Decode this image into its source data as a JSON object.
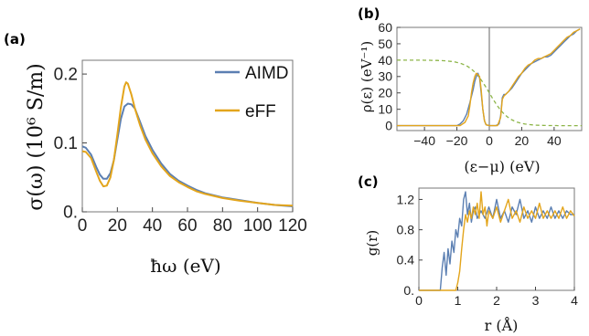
{
  "colors": {
    "aimd": "#5b7fb2",
    "eff": "#e3a51c",
    "fermi": "#8db548",
    "axis": "#444444"
  },
  "chart_data": [
    {
      "id": "a",
      "type": "line",
      "panel_label": "(a)",
      "xlabel": "ħω (eV)",
      "ylabel": "σ(ω) (10⁶ S/m)",
      "xlim": [
        0,
        120
      ],
      "ylim": [
        0,
        0.22
      ],
      "xticks": [
        0,
        20,
        40,
        60,
        80,
        100,
        120
      ],
      "xtick_labels": [
        "0",
        "20",
        "40",
        "60",
        "80",
        "100",
        "120"
      ],
      "yticks": [
        0,
        0.1,
        0.2
      ],
      "ytick_labels": [
        "0.",
        "0.1",
        "0.2"
      ],
      "legend_position": "top-right",
      "series": [
        {
          "name": "AIMD",
          "color": "#5b7fb2",
          "points": [
            [
              0,
              0.095
            ],
            [
              2,
              0.093
            ],
            [
              5,
              0.083
            ],
            [
              8,
              0.065
            ],
            [
              10,
              0.054
            ],
            [
              12,
              0.048
            ],
            [
              14,
              0.048
            ],
            [
              16,
              0.056
            ],
            [
              18,
              0.075
            ],
            [
              20,
              0.105
            ],
            [
              22,
              0.135
            ],
            [
              24,
              0.153
            ],
            [
              26,
              0.157
            ],
            [
              28,
              0.156
            ],
            [
              30,
              0.15
            ],
            [
              33,
              0.13
            ],
            [
              36,
              0.11
            ],
            [
              40,
              0.09
            ],
            [
              45,
              0.07
            ],
            [
              50,
              0.055
            ],
            [
              55,
              0.045
            ],
            [
              60,
              0.038
            ],
            [
              65,
              0.032
            ],
            [
              70,
              0.027
            ],
            [
              80,
              0.021
            ],
            [
              90,
              0.017
            ],
            [
              100,
              0.013
            ],
            [
              110,
              0.01
            ],
            [
              120,
              0.008
            ]
          ]
        },
        {
          "name": "eFF",
          "color": "#e3a51c",
          "points": [
            [
              0,
              0.088
            ],
            [
              2,
              0.087
            ],
            [
              5,
              0.078
            ],
            [
              8,
              0.058
            ],
            [
              10,
              0.045
            ],
            [
              12,
              0.037
            ],
            [
              14,
              0.038
            ],
            [
              16,
              0.05
            ],
            [
              18,
              0.075
            ],
            [
              20,
              0.112
            ],
            [
              22,
              0.152
            ],
            [
              24,
              0.182
            ],
            [
              25,
              0.188
            ],
            [
              26,
              0.186
            ],
            [
              28,
              0.17
            ],
            [
              30,
              0.15
            ],
            [
              33,
              0.125
            ],
            [
              36,
              0.105
            ],
            [
              40,
              0.085
            ],
            [
              45,
              0.066
            ],
            [
              50,
              0.052
            ],
            [
              55,
              0.043
            ],
            [
              60,
              0.036
            ],
            [
              65,
              0.03
            ],
            [
              70,
              0.026
            ],
            [
              80,
              0.02
            ],
            [
              90,
              0.016
            ],
            [
              100,
              0.013
            ],
            [
              110,
              0.01
            ],
            [
              120,
              0.009
            ]
          ]
        }
      ]
    },
    {
      "id": "b",
      "type": "line",
      "panel_label": "(b)",
      "xlabel": "(ε−μ) (eV)",
      "ylabel": "ρ(ε) (eV⁻¹)",
      "xlim": [
        -57,
        57
      ],
      "ylim": [
        -3,
        60
      ],
      "xticks": [
        -40,
        -20,
        0,
        20,
        40
      ],
      "xtick_labels": [
        "−40",
        "−20",
        "0",
        "20",
        "40"
      ],
      "yticks": [
        0,
        10,
        20,
        30,
        40,
        50,
        60
      ],
      "ytick_labels": [
        "0",
        "10",
        "20",
        "30",
        "40",
        "50",
        "60"
      ],
      "vline_x": 0,
      "fermi_curve": {
        "amplitude": 40,
        "center": 0,
        "width": 6
      },
      "series": [
        {
          "name": "AIMD",
          "color": "#5b7fb2",
          "points": [
            [
              -57,
              0
            ],
            [
              -20,
              0
            ],
            [
              -18,
              1
            ],
            [
              -16,
              3
            ],
            [
              -14,
              7
            ],
            [
              -12,
              14
            ],
            [
              -10,
              22
            ],
            [
              -9,
              27
            ],
            [
              -8,
              30
            ],
            [
              -7,
              32
            ],
            [
              -6,
              29
            ],
            [
              -5,
              20
            ],
            [
              -4,
              10
            ],
            [
              -3,
              3
            ],
            [
              -2,
              0.5
            ],
            [
              0,
              0
            ],
            [
              4,
              0
            ],
            [
              6,
              1
            ],
            [
              7,
              6
            ],
            [
              8,
              17
            ],
            [
              9,
              19
            ],
            [
              10,
              19
            ],
            [
              12,
              21
            ],
            [
              14,
              23
            ],
            [
              16,
              26
            ],
            [
              18,
              29
            ],
            [
              20,
              32
            ],
            [
              22,
              34
            ],
            [
              24,
              36
            ],
            [
              26,
              38
            ],
            [
              28,
              39
            ],
            [
              30,
              40
            ],
            [
              32,
              41
            ],
            [
              34,
              42
            ],
            [
              36,
              42
            ],
            [
              38,
              43
            ],
            [
              40,
              45
            ],
            [
              42,
              47
            ],
            [
              44,
              49
            ],
            [
              46,
              51
            ],
            [
              48,
              53
            ],
            [
              50,
              55
            ],
            [
              52,
              56
            ],
            [
              54,
              58
            ],
            [
              56,
              59
            ]
          ]
        },
        {
          "name": "eFF",
          "color": "#e3a51c",
          "points": [
            [
              -57,
              0
            ],
            [
              -18,
              0
            ],
            [
              -15,
              2
            ],
            [
              -13,
              6
            ],
            [
              -12,
              12
            ],
            [
              -11,
              20
            ],
            [
              -10,
              26
            ],
            [
              -9,
              30
            ],
            [
              -8,
              32
            ],
            [
              -7,
              31
            ],
            [
              -6,
              30
            ],
            [
              -5,
              22
            ],
            [
              -4,
              10
            ],
            [
              -3,
              3
            ],
            [
              -2,
              0.5
            ],
            [
              0,
              0
            ],
            [
              5,
              0
            ],
            [
              7,
              5
            ],
            [
              8,
              16
            ],
            [
              9,
              18
            ],
            [
              10,
              19
            ],
            [
              12,
              21
            ],
            [
              14,
              24
            ],
            [
              16,
              27
            ],
            [
              18,
              30
            ],
            [
              20,
              32
            ],
            [
              22,
              35
            ],
            [
              24,
              37
            ],
            [
              26,
              38
            ],
            [
              28,
              40
            ],
            [
              30,
              41
            ],
            [
              32,
              41
            ],
            [
              34,
              42
            ],
            [
              36,
              43
            ],
            [
              38,
              44
            ],
            [
              40,
              46
            ],
            [
              42,
              48
            ],
            [
              44,
              50
            ],
            [
              46,
              52
            ],
            [
              48,
              54
            ],
            [
              50,
              55
            ],
            [
              52,
              57
            ],
            [
              54,
              58
            ],
            [
              56,
              59
            ]
          ]
        }
      ]
    },
    {
      "id": "c",
      "type": "line",
      "panel_label": "(c)",
      "xlabel": "r (Å)",
      "ylabel": "g(r)",
      "xlim": [
        0,
        4
      ],
      "ylim": [
        0,
        1.35
      ],
      "xticks": [
        0,
        1,
        2,
        3,
        4
      ],
      "xtick_labels": [
        "0",
        "1",
        "2",
        "3",
        "4"
      ],
      "yticks": [
        0,
        0.4,
        0.8,
        1.2
      ],
      "ytick_labels": [
        "0.",
        "0.4",
        "0.8",
        "1.2"
      ],
      "series": [
        {
          "name": "AIMD",
          "color": "#5b7fb2",
          "points": [
            [
              0,
              0
            ],
            [
              0.55,
              0
            ],
            [
              0.6,
              0.3
            ],
            [
              0.65,
              0.5
            ],
            [
              0.7,
              0.2
            ],
            [
              0.75,
              0.55
            ],
            [
              0.8,
              0.35
            ],
            [
              0.85,
              0.65
            ],
            [
              0.9,
              0.5
            ],
            [
              0.95,
              0.8
            ],
            [
              1.0,
              0.7
            ],
            [
              1.05,
              0.95
            ],
            [
              1.1,
              0.85
            ],
            [
              1.15,
              1.2
            ],
            [
              1.2,
              1.3
            ],
            [
              1.25,
              1.0
            ],
            [
              1.3,
              1.15
            ],
            [
              1.35,
              0.9
            ],
            [
              1.4,
              1.05
            ],
            [
              1.45,
              1.1
            ],
            [
              1.5,
              0.95
            ],
            [
              1.6,
              1.05
            ],
            [
              1.7,
              0.95
            ],
            [
              1.8,
              1.1
            ],
            [
              1.9,
              0.95
            ],
            [
              2.0,
              1.2
            ],
            [
              2.1,
              0.95
            ],
            [
              2.2,
              1.05
            ],
            [
              2.3,
              0.9
            ],
            [
              2.4,
              1.1
            ],
            [
              2.5,
              1.0
            ],
            [
              2.6,
              1.2
            ],
            [
              2.7,
              0.95
            ],
            [
              2.8,
              1.05
            ],
            [
              2.9,
              0.9
            ],
            [
              3.0,
              1.1
            ],
            [
              3.1,
              0.95
            ],
            [
              3.2,
              1.05
            ],
            [
              3.3,
              0.95
            ],
            [
              3.4,
              1.1
            ],
            [
              3.5,
              0.95
            ],
            [
              3.6,
              1.05
            ],
            [
              3.7,
              0.95
            ],
            [
              3.8,
              1.05
            ],
            [
              3.9,
              1.0
            ],
            [
              4.0,
              1.0
            ]
          ]
        },
        {
          "name": "eFF",
          "color": "#e3a51c",
          "points": [
            [
              0,
              0
            ],
            [
              0.95,
              0
            ],
            [
              1.0,
              0.1
            ],
            [
              1.05,
              0.25
            ],
            [
              1.1,
              0.55
            ],
            [
              1.15,
              0.8
            ],
            [
              1.2,
              1.0
            ],
            [
              1.25,
              0.9
            ],
            [
              1.3,
              1.05
            ],
            [
              1.35,
              0.95
            ],
            [
              1.4,
              1.1
            ],
            [
              1.45,
              1.0
            ],
            [
              1.5,
              1.15
            ],
            [
              1.55,
              0.95
            ],
            [
              1.6,
              1.3
            ],
            [
              1.65,
              1.0
            ],
            [
              1.7,
              1.1
            ],
            [
              1.75,
              0.85
            ],
            [
              1.8,
              1.05
            ],
            [
              1.9,
              0.95
            ],
            [
              2.0,
              1.1
            ],
            [
              2.1,
              0.9
            ],
            [
              2.2,
              1.05
            ],
            [
              2.3,
              1.2
            ],
            [
              2.4,
              0.95
            ],
            [
              2.5,
              1.05
            ],
            [
              2.6,
              0.9
            ],
            [
              2.7,
              1.1
            ],
            [
              2.8,
              0.95
            ],
            [
              2.9,
              1.05
            ],
            [
              3.0,
              0.95
            ],
            [
              3.1,
              1.15
            ],
            [
              3.2,
              0.95
            ],
            [
              3.3,
              1.05
            ],
            [
              3.4,
              0.95
            ],
            [
              3.5,
              1.05
            ],
            [
              3.6,
              0.95
            ],
            [
              3.7,
              1.1
            ],
            [
              3.8,
              0.95
            ],
            [
              3.9,
              1.05
            ],
            [
              4.0,
              0.98
            ]
          ]
        }
      ]
    }
  ]
}
